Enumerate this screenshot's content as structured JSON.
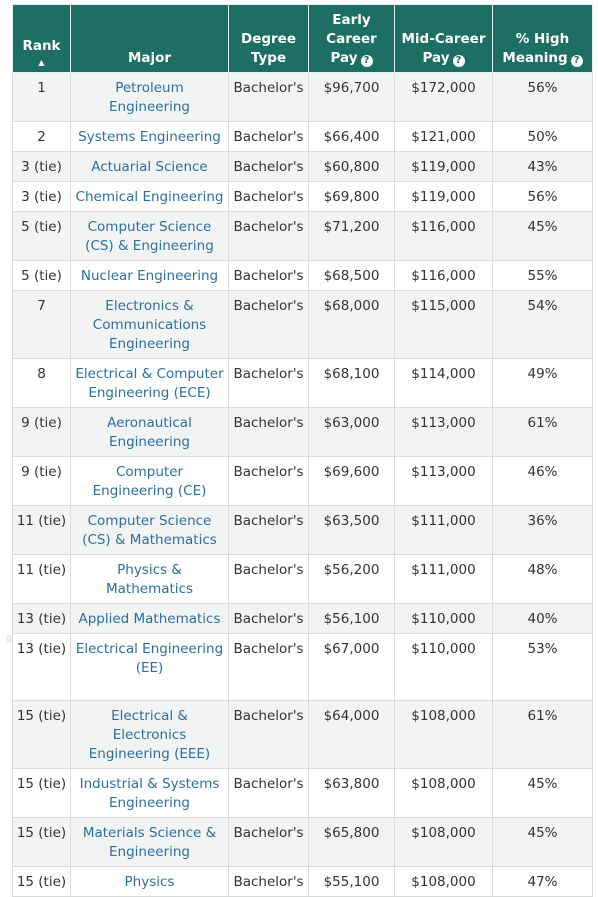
{
  "headers": {
    "rank": "Rank",
    "major": "Major",
    "degree": "Degree Type",
    "early": "Early Career Pay",
    "mid": "Mid-Career Pay",
    "high": "% High Meaning",
    "help_icon": "question-circle-icon",
    "sort_icon": "sort-ascending-icon"
  },
  "rows": [
    {
      "rank": "1",
      "major": "Petroleum Engineering",
      "degree": "Bachelor's",
      "early": "$96,700",
      "mid": "$172,000",
      "high": "56%"
    },
    {
      "rank": "2",
      "major": "Systems Engineering",
      "degree": "Bachelor's",
      "early": "$66,400",
      "mid": "$121,000",
      "high": "50%"
    },
    {
      "rank": "3 (tie)",
      "major": "Actuarial Science",
      "degree": "Bachelor's",
      "early": "$60,800",
      "mid": "$119,000",
      "high": "43%"
    },
    {
      "rank": "3 (tie)",
      "major": "Chemical Engineering",
      "degree": "Bachelor's",
      "early": "$69,800",
      "mid": "$119,000",
      "high": "56%"
    },
    {
      "rank": "5 (tie)",
      "major": "Computer Science (CS) & Engineering",
      "degree": "Bachelor's",
      "early": "$71,200",
      "mid": "$116,000",
      "high": "45%"
    },
    {
      "rank": "5 (tie)",
      "major": "Nuclear Engineering",
      "degree": "Bachelor's",
      "early": "$68,500",
      "mid": "$116,000",
      "high": "55%"
    },
    {
      "rank": "7",
      "major": "Electronics & Communications Engineering",
      "degree": "Bachelor's",
      "early": "$68,000",
      "mid": "$115,000",
      "high": "54%"
    },
    {
      "rank": "8",
      "major": "Electrical & Computer Engineering (ECE)",
      "degree": "Bachelor's",
      "early": "$68,100",
      "mid": "$114,000",
      "high": "49%"
    },
    {
      "rank": "9 (tie)",
      "major": "Aeronautical Engineering",
      "degree": "Bachelor's",
      "early": "$63,000",
      "mid": "$113,000",
      "high": "61%"
    },
    {
      "rank": "9 (tie)",
      "major": "Computer Engineering (CE)",
      "degree": "Bachelor's",
      "early": "$69,600",
      "mid": "$113,000",
      "high": "46%"
    },
    {
      "rank": "11 (tie)",
      "major": "Computer Science (CS) & Mathematics",
      "degree": "Bachelor's",
      "early": "$63,500",
      "mid": "$111,000",
      "high": "36%"
    },
    {
      "rank": "11 (tie)",
      "major": "Physics & Mathematics",
      "degree": "Bachelor's",
      "early": "$56,200",
      "mid": "$111,000",
      "high": "48%"
    },
    {
      "rank": "13 (tie)",
      "major": "Applied Mathematics",
      "degree": "Bachelor's",
      "early": "$56,100",
      "mid": "$110,000",
      "high": "40%"
    },
    {
      "rank": "13 (tie)",
      "major": "Electrical Engineering (EE)",
      "degree": "Bachelor's",
      "early": "$67,000",
      "mid": "$110,000",
      "high": "53%"
    },
    {
      "rank": "15 (tie)",
      "major": "Electrical & Electronics Engineering (EEE)",
      "degree": "Bachelor's",
      "early": "$64,000",
      "mid": "$108,000",
      "high": "61%"
    },
    {
      "rank": "15 (tie)",
      "major": "Industrial & Systems Engineering",
      "degree": "Bachelor's",
      "early": "$63,800",
      "mid": "$108,000",
      "high": "45%"
    },
    {
      "rank": "15 (tie)",
      "major": "Materials Science & Engineering",
      "degree": "Bachelor's",
      "early": "$65,800",
      "mid": "$108,000",
      "high": "45%"
    },
    {
      "rank": "15 (tie)",
      "major": "Physics",
      "degree": "Bachelor's",
      "early": "$55,100",
      "mid": "$108,000",
      "high": "47%"
    }
  ],
  "colors": {
    "header_bg": "#1d6f64",
    "major_link": "#2c6f9e",
    "row_alt": "#f2f4f4"
  }
}
